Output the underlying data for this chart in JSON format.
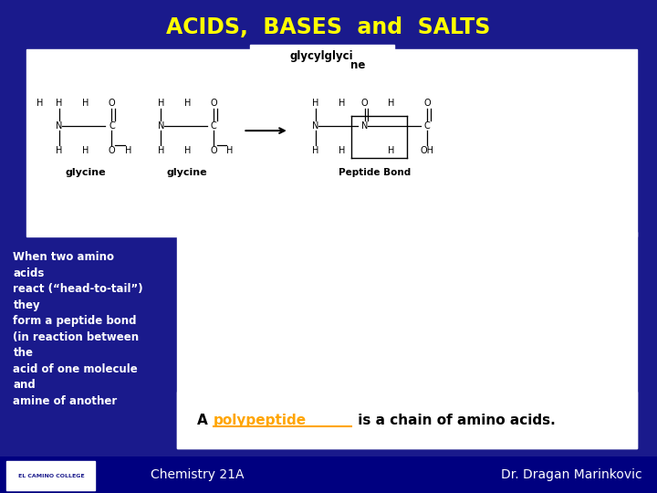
{
  "background_color": "#1a1a8c",
  "title": "ACIDS,  BASES  and  SALTS",
  "title_color": "#ffff00",
  "title_fontsize": 17,
  "label_glycine1": "glycine",
  "label_glycine2": "glycine",
  "label_peptide": "Peptide Bond",
  "bottom_text_a": "A ",
  "bottom_text_link": "polypeptide",
  "bottom_text_end": " is a chain of amino acids.",
  "bottom_link_color": "#ffa500",
  "bottom_text_color": "#000000",
  "footer_left": "Chemistry 21A",
  "footer_right": "Dr. Dragan Marinkovic",
  "footer_color": "#ffffff",
  "footer_fontsize": 10,
  "left_text": "When two amino\nacids\nreact (“head-to-tail”)\nthey\nform a peptide bond\n(in reaction between\nthe\nacid of one molecule\nand\namine of another"
}
